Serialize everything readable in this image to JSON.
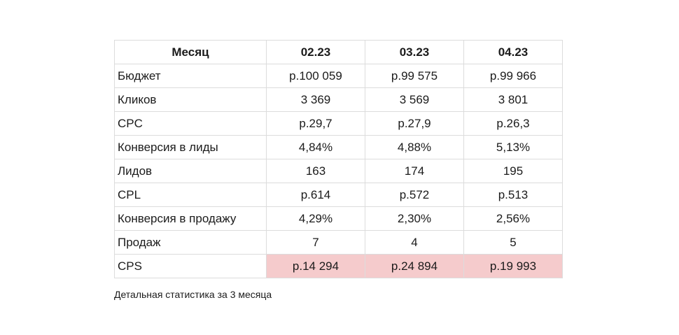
{
  "table": {
    "header": {
      "label": "Месяц",
      "months": [
        "02.23",
        "03.23",
        "04.23"
      ]
    },
    "rows": [
      {
        "label": "Бюджет",
        "values": [
          "р.100 059",
          "р.99 575",
          "р.99 966"
        ]
      },
      {
        "label": "Кликов",
        "values": [
          "3 369",
          "3 569",
          "3 801"
        ]
      },
      {
        "label": "CPC",
        "values": [
          "р.29,7",
          "р.27,9",
          "р.26,3"
        ]
      },
      {
        "label": "Конверсия в лиды",
        "values": [
          "4,84%",
          "4,88%",
          "5,13%"
        ]
      },
      {
        "label": "Лидов",
        "values": [
          "163",
          "174",
          "195"
        ]
      },
      {
        "label": "CPL",
        "values": [
          "р.614",
          "р.572",
          "р.513"
        ]
      },
      {
        "label": "Конверсия в продажу",
        "values": [
          "4,29%",
          "2,30%",
          "2,56%"
        ]
      },
      {
        "label": "Продаж",
        "values": [
          "7",
          "4",
          "5"
        ]
      },
      {
        "label": "CPS",
        "values": [
          "р.14 294",
          "р.24 894",
          "р.19 993"
        ],
        "highlight_color": "#f5cbcc"
      }
    ]
  },
  "caption": "Детальная статистика за 3 месяца"
}
